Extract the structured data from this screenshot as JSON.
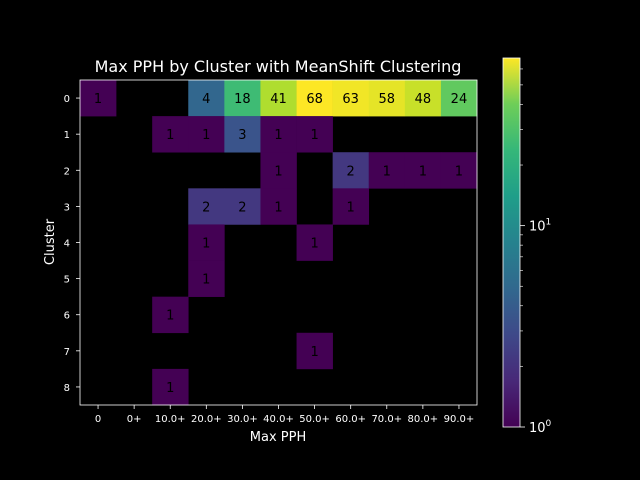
{
  "chart_data": {
    "type": "heatmap",
    "title": "Max PPH by Cluster with MeanShift Clustering",
    "xlabel": "Max PPH",
    "ylabel": "Cluster",
    "x_categories": [
      "0",
      "0+",
      "10.0+",
      "20.0+",
      "30.0+",
      "40.0+",
      "50.0+",
      "60.0+",
      "70.0+",
      "80.0+",
      "90.0+"
    ],
    "y_categories": [
      "0",
      "1",
      "2",
      "3",
      "4",
      "5",
      "6",
      "7",
      "8"
    ],
    "values": [
      [
        1,
        0,
        0,
        4,
        18,
        41,
        68,
        63,
        58,
        48,
        24
      ],
      [
        0,
        0,
        1,
        1,
        3,
        1,
        1,
        0,
        0,
        0,
        0
      ],
      [
        0,
        0,
        0,
        0,
        0,
        1,
        0,
        2,
        1,
        1,
        1
      ],
      [
        0,
        0,
        0,
        2,
        2,
        1,
        0,
        1,
        0,
        0,
        0
      ],
      [
        0,
        0,
        0,
        1,
        0,
        0,
        1,
        0,
        0,
        0,
        0
      ],
      [
        0,
        0,
        0,
        1,
        0,
        0,
        0,
        0,
        0,
        0,
        0
      ],
      [
        0,
        0,
        1,
        0,
        0,
        0,
        0,
        0,
        0,
        0,
        0
      ],
      [
        0,
        0,
        0,
        0,
        0,
        0,
        1,
        0,
        0,
        0,
        0
      ],
      [
        0,
        0,
        1,
        0,
        0,
        0,
        0,
        0,
        0,
        0,
        0
      ]
    ],
    "colormap": "viridis",
    "color_scale": "log",
    "color_range": [
      1,
      68
    ],
    "colorbar_ticks": [
      {
        "value": 1,
        "base": "10",
        "exp": "0"
      },
      {
        "value": 10,
        "base": "10",
        "exp": "1"
      }
    ],
    "background_color": "#000000",
    "grid": false
  }
}
